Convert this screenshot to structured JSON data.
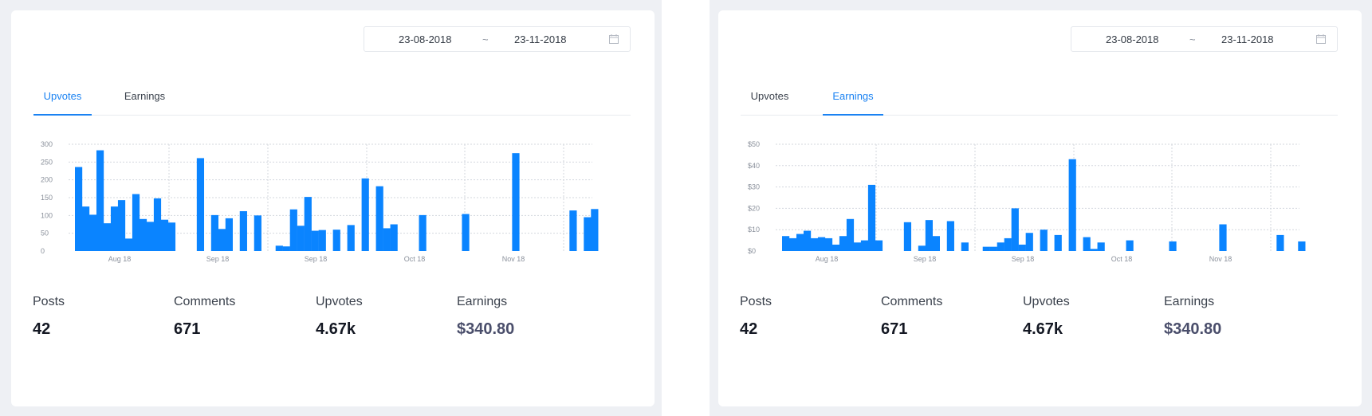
{
  "panels": [
    {
      "id": "upvotes-panel",
      "date_from": "23-08-2018",
      "date_separator": "~",
      "date_to": "23-11-2018",
      "tabs": [
        {
          "label": "Upvotes",
          "active": true
        },
        {
          "label": "Earnings",
          "active": false
        }
      ],
      "stats": [
        {
          "label": "Posts",
          "value": "42"
        },
        {
          "label": "Comments",
          "value": "671"
        },
        {
          "label": "Upvotes",
          "value": "4.67k"
        },
        {
          "label": "Earnings",
          "value": "$340.80"
        }
      ],
      "chart_data": {
        "type": "bar",
        "title": "",
        "xlabel": "",
        "ylabel": "",
        "ylim": [
          0,
          300
        ],
        "yticks": [
          0,
          50,
          100,
          150,
          200,
          250,
          300
        ],
        "ytick_labels": [
          "0",
          "50",
          "100",
          "150",
          "200",
          "250",
          "300"
        ],
        "x_tick_labels": [
          "Aug 18",
          "Sep 18",
          "Sep 18",
          "Oct 18",
          "Nov 18"
        ],
        "grid": true,
        "color": "#0a84ff",
        "bars": [
          {
            "x": 0,
            "value": 236
          },
          {
            "x": 1,
            "value": 125
          },
          {
            "x": 2,
            "value": 102
          },
          {
            "x": 3,
            "value": 283
          },
          {
            "x": 4,
            "value": 78
          },
          {
            "x": 5,
            "value": 125
          },
          {
            "x": 6,
            "value": 143
          },
          {
            "x": 7,
            "value": 35
          },
          {
            "x": 8,
            "value": 160
          },
          {
            "x": 9,
            "value": 90
          },
          {
            "x": 10,
            "value": 82
          },
          {
            "x": 11,
            "value": 148
          },
          {
            "x": 12,
            "value": 88
          },
          {
            "x": 13,
            "value": 80
          },
          {
            "x": 17,
            "value": 261
          },
          {
            "x": 19,
            "value": 101
          },
          {
            "x": 20,
            "value": 62
          },
          {
            "x": 21,
            "value": 92
          },
          {
            "x": 23,
            "value": 112
          },
          {
            "x": 25,
            "value": 100
          },
          {
            "x": 28,
            "value": 15
          },
          {
            "x": 29,
            "value": 13
          },
          {
            "x": 30,
            "value": 117
          },
          {
            "x": 31,
            "value": 71
          },
          {
            "x": 32,
            "value": 152
          },
          {
            "x": 33,
            "value": 57
          },
          {
            "x": 34,
            "value": 59
          },
          {
            "x": 36,
            "value": 60
          },
          {
            "x": 38,
            "value": 73
          },
          {
            "x": 40,
            "value": 204
          },
          {
            "x": 42,
            "value": 182
          },
          {
            "x": 43,
            "value": 64
          },
          {
            "x": 44,
            "value": 75
          },
          {
            "x": 48,
            "value": 101
          },
          {
            "x": 54,
            "value": 104
          },
          {
            "x": 61,
            "value": 275
          },
          {
            "x": 69,
            "value": 114
          },
          {
            "x": 71,
            "value": 95
          },
          {
            "x": 72,
            "value": 118
          }
        ]
      }
    },
    {
      "id": "earnings-panel",
      "date_from": "23-08-2018",
      "date_separator": "~",
      "date_to": "23-11-2018",
      "tabs": [
        {
          "label": "Upvotes",
          "active": false
        },
        {
          "label": "Earnings",
          "active": true
        }
      ],
      "stats": [
        {
          "label": "Posts",
          "value": "42"
        },
        {
          "label": "Comments",
          "value": "671"
        },
        {
          "label": "Upvotes",
          "value": "4.67k"
        },
        {
          "label": "Earnings",
          "value": "$340.80"
        }
      ],
      "chart_data": {
        "type": "bar",
        "title": "",
        "xlabel": "",
        "ylabel": "",
        "ylim": [
          0,
          50
        ],
        "yticks": [
          0,
          10,
          20,
          30,
          40,
          50
        ],
        "ytick_labels": [
          "$0",
          "$10",
          "$20",
          "$30",
          "$40",
          "$50"
        ],
        "x_tick_labels": [
          "Aug 18",
          "Sep 18",
          "Sep 18",
          "Oct 18",
          "Nov 18"
        ],
        "grid": true,
        "color": "#0a84ff",
        "bars": [
          {
            "x": 0,
            "value": 7
          },
          {
            "x": 1,
            "value": 6
          },
          {
            "x": 2,
            "value": 8
          },
          {
            "x": 3,
            "value": 9.5
          },
          {
            "x": 4,
            "value": 6
          },
          {
            "x": 5,
            "value": 6.5
          },
          {
            "x": 6,
            "value": 6
          },
          {
            "x": 7,
            "value": 3
          },
          {
            "x": 8,
            "value": 7
          },
          {
            "x": 9,
            "value": 15
          },
          {
            "x": 10,
            "value": 4
          },
          {
            "x": 11,
            "value": 5
          },
          {
            "x": 12,
            "value": 31
          },
          {
            "x": 13,
            "value": 5
          },
          {
            "x": 17,
            "value": 13.5
          },
          {
            "x": 19,
            "value": 2.5
          },
          {
            "x": 20,
            "value": 14.5
          },
          {
            "x": 21,
            "value": 7
          },
          {
            "x": 23,
            "value": 14
          },
          {
            "x": 25,
            "value": 4
          },
          {
            "x": 28,
            "value": 2
          },
          {
            "x": 29,
            "value": 2
          },
          {
            "x": 30,
            "value": 4
          },
          {
            "x": 31,
            "value": 6
          },
          {
            "x": 32,
            "value": 20
          },
          {
            "x": 33,
            "value": 3
          },
          {
            "x": 34,
            "value": 8.5
          },
          {
            "x": 36,
            "value": 10
          },
          {
            "x": 38,
            "value": 7.5
          },
          {
            "x": 40,
            "value": 43
          },
          {
            "x": 42,
            "value": 6.5
          },
          {
            "x": 43,
            "value": 1
          },
          {
            "x": 44,
            "value": 4
          },
          {
            "x": 48,
            "value": 5
          },
          {
            "x": 54,
            "value": 4.5
          },
          {
            "x": 61,
            "value": 12.5
          },
          {
            "x": 69,
            "value": 7.5
          },
          {
            "x": 72,
            "value": 4.5
          }
        ]
      }
    }
  ]
}
